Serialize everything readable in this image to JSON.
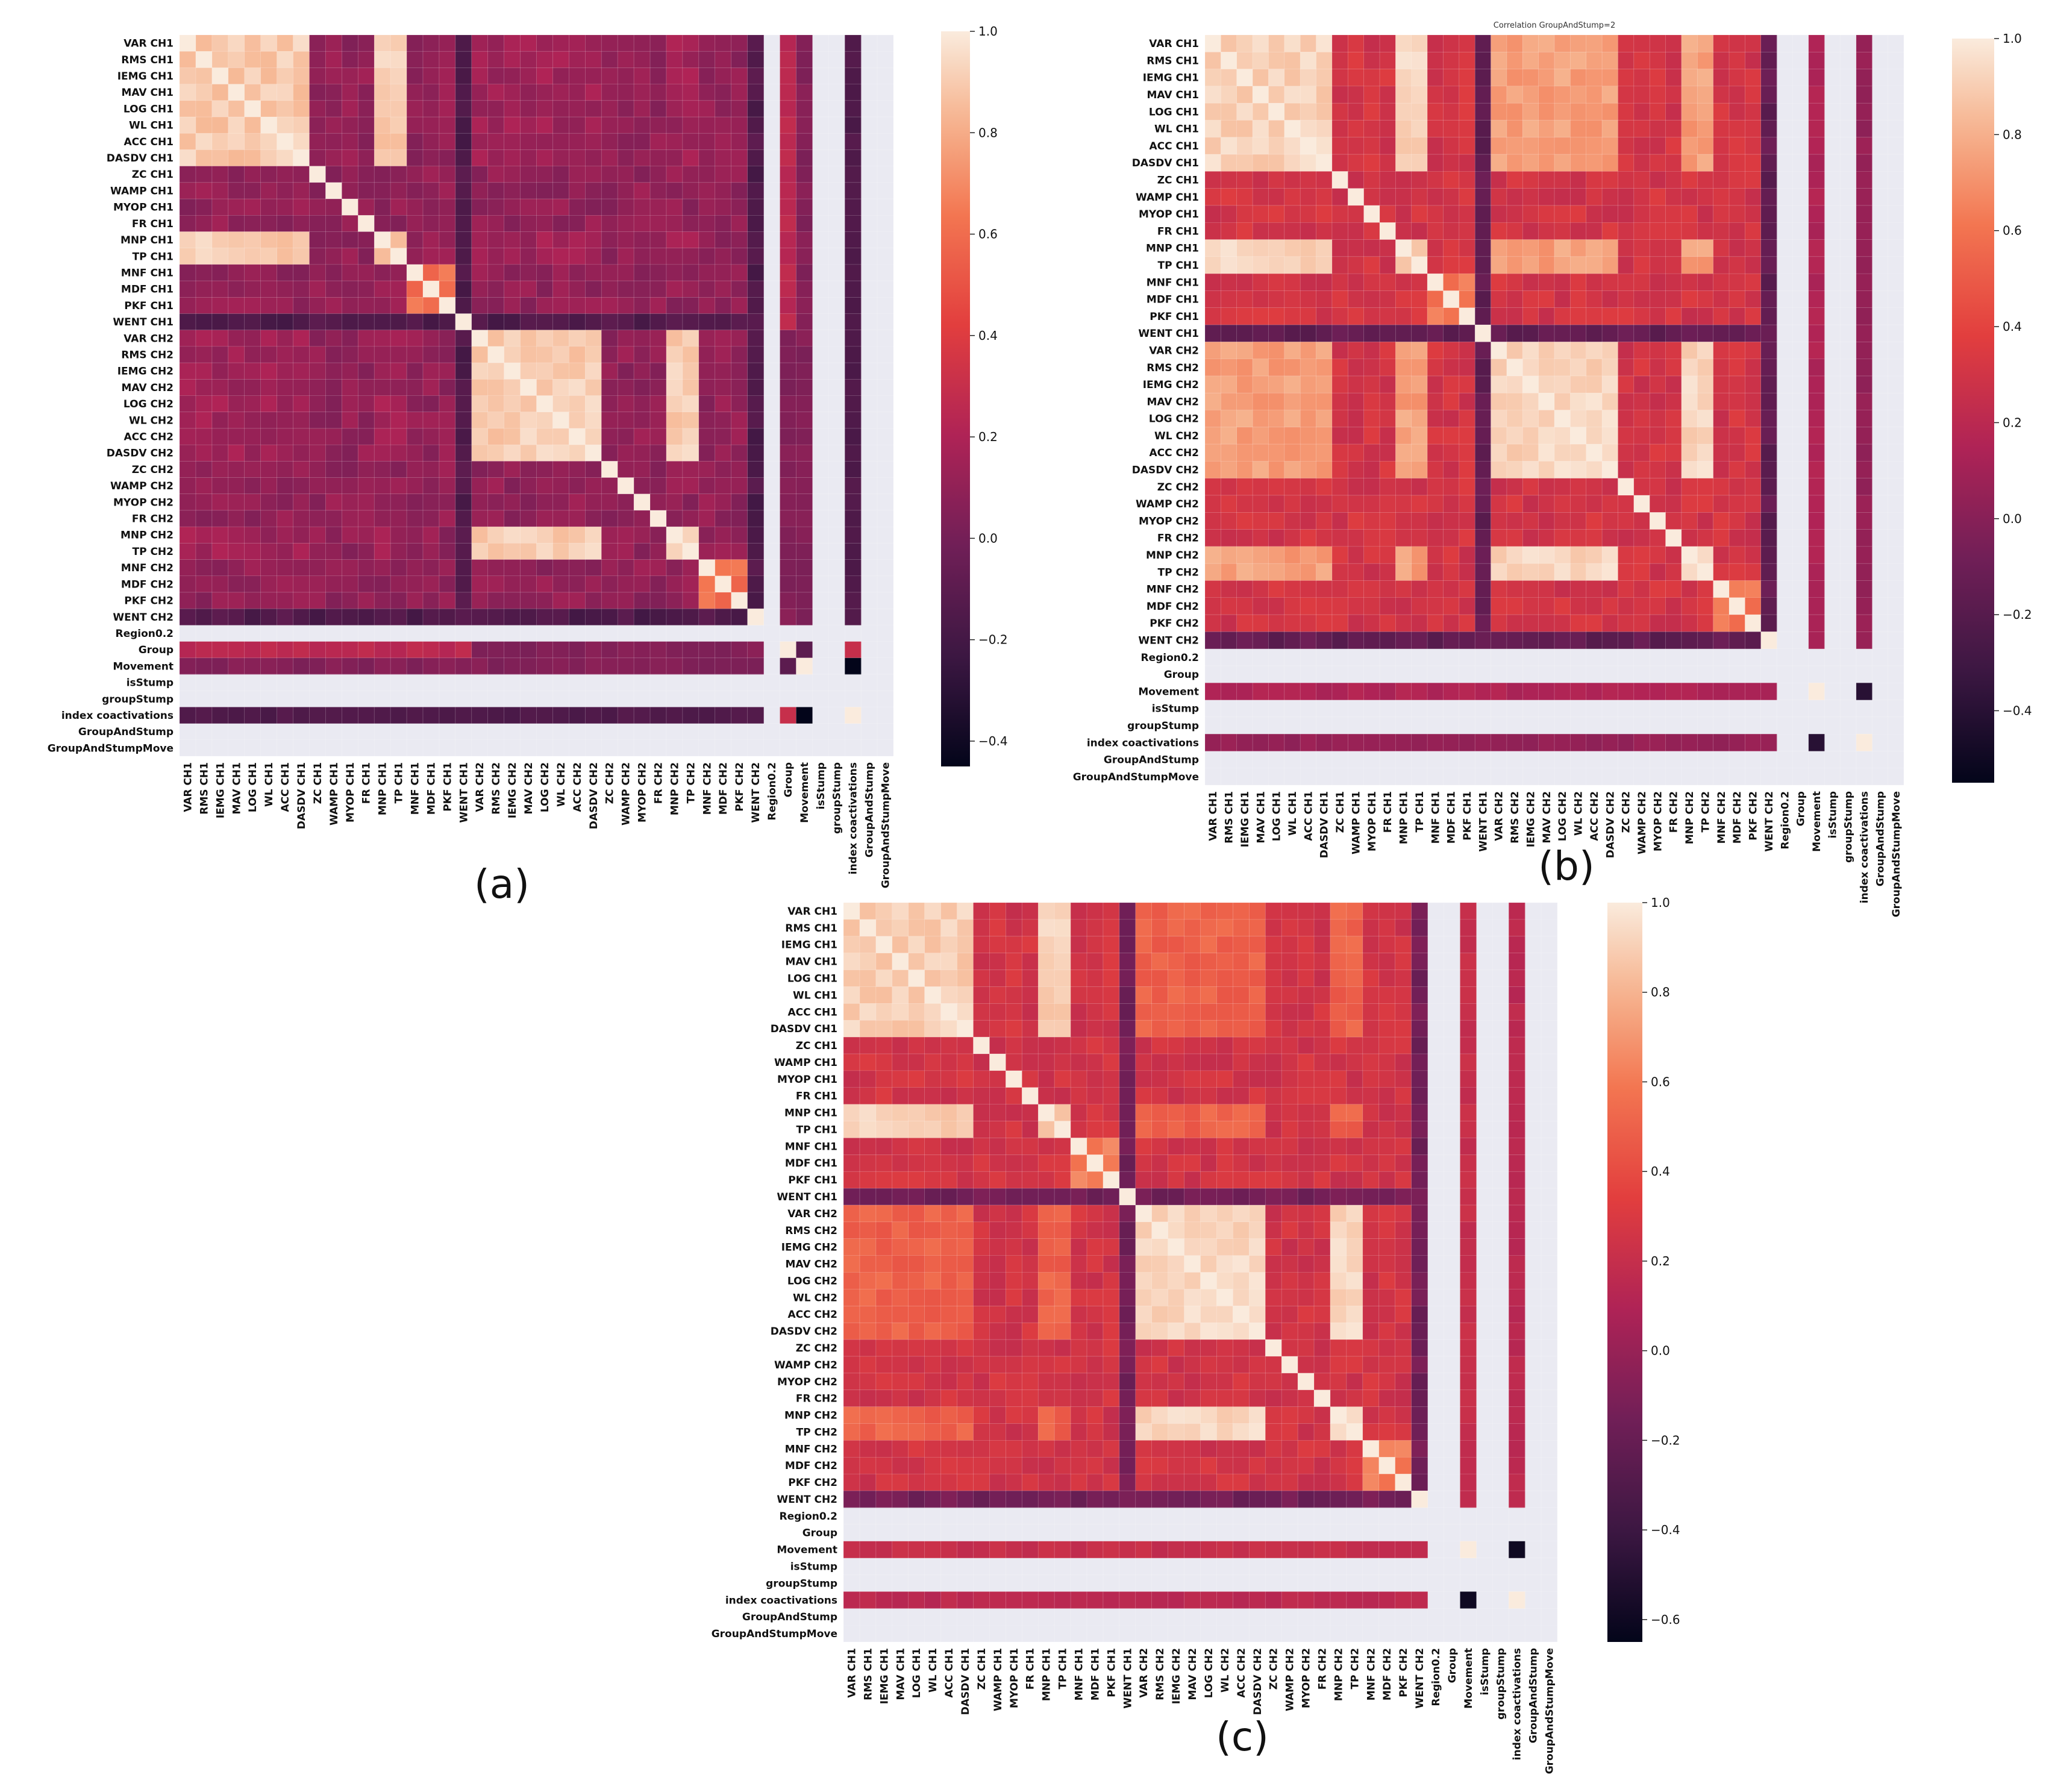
{
  "chart_data": [
    {
      "type": "heatmap",
      "panel_label": "(a)",
      "title": "",
      "labels": [
        "VAR CH1",
        "RMS CH1",
        "IEMG CH1",
        "MAV CH1",
        "LOG CH1",
        "WL CH1",
        "ACC CH1",
        "DASDV CH1",
        "ZC CH1",
        "WAMP CH1",
        "MYOP CH1",
        "FR CH1",
        "MNP CH1",
        "TP CH1",
        "MNF CH1",
        "MDF CH1",
        "PKF CH1",
        "WENT CH1",
        "VAR CH2",
        "RMS CH2",
        "IEMG CH2",
        "MAV CH2",
        "LOG CH2",
        "WL CH2",
        "ACC CH2",
        "DASDV CH2",
        "ZC CH2",
        "WAMP CH2",
        "MYOP CH2",
        "FR CH2",
        "MNP CH2",
        "TP CH2",
        "MNF CH2",
        "MDF CH2",
        "PKF CH2",
        "WENT CH2",
        "Region0.2",
        "Group",
        "Movement",
        "isStump",
        "groupStump",
        "index coactivations",
        "GroupAndStump",
        "GroupAndStumpMove"
      ],
      "colorbar": {
        "vmin": -0.45,
        "vmax": 1.0,
        "ticks": [
          "1.0",
          "0.8",
          "0.6",
          "0.4",
          "0.2",
          "0.0",
          "−0.2",
          "−0.4"
        ]
      },
      "empty_labels": [
        "Region0.2",
        "isStump",
        "groupStump",
        "GroupAndStump",
        "GroupAndStumpMove"
      ],
      "block_values": {
        "ch1_amp_block": 0.9,
        "ch2_amp_block": 0.9,
        "ch1_ch2_amp_cross": 0.15,
        "spectral_block": 0.6,
        "typical_off_diagonal": 0.1
      },
      "special_values": {
        "Group~Movement": -0.1,
        "Movement~index coactivations": -0.45,
        "Group~index coactivations": 0.3,
        "Group~ch1 features": 0.25,
        "index coactivations~features": -0.15
      }
    },
    {
      "type": "heatmap",
      "panel_label": "(b)",
      "title": "Correlation GroupAndStump=2",
      "labels": [
        "VAR CH1",
        "RMS CH1",
        "IEMG CH1",
        "MAV CH1",
        "LOG CH1",
        "WL CH1",
        "ACC CH1",
        "DASDV CH1",
        "ZC CH1",
        "WAMP CH1",
        "MYOP CH1",
        "FR CH1",
        "MNP CH1",
        "TP CH1",
        "MNF CH1",
        "MDF CH1",
        "PKF CH1",
        "WENT CH1",
        "VAR CH2",
        "RMS CH2",
        "IEMG CH2",
        "MAV CH2",
        "LOG CH2",
        "WL CH2",
        "ACC CH2",
        "DASDV CH2",
        "ZC CH2",
        "WAMP CH2",
        "MYOP CH2",
        "FR CH2",
        "MNP CH2",
        "TP CH2",
        "MNF CH2",
        "MDF CH2",
        "PKF CH2",
        "WENT CH2",
        "Region0.2",
        "Group",
        "Movement",
        "isStump",
        "groupStump",
        "index coactivations",
        "GroupAndStump",
        "GroupAndStumpMove"
      ],
      "colorbar": {
        "vmin": -0.55,
        "vmax": 1.0,
        "ticks": [
          "1.0",
          "0.8",
          "0.6",
          "0.4",
          "0.2",
          "0.0",
          "−0.2",
          "−0.4"
        ]
      },
      "empty_labels": [
        "Region0.2",
        "Group",
        "isStump",
        "groupStump",
        "GroupAndStump",
        "GroupAndStumpMove"
      ],
      "block_values": {
        "ch1_amp_block": 0.92,
        "ch2_amp_block": 0.92,
        "ch1_ch2_amp_cross": 0.75,
        "spectral_block": 0.6,
        "typical_off_diagonal": 0.3
      },
      "special_values": {
        "Movement~index coactivations": -0.4,
        "WENT CH2~spectral": -0.5,
        "Movement~features": 0.15,
        "index coactivations~features": 0.05
      }
    },
    {
      "type": "heatmap",
      "panel_label": "(c)",
      "title": "",
      "labels": [
        "VAR CH1",
        "RMS CH1",
        "IEMG CH1",
        "MAV CH1",
        "LOG CH1",
        "WL CH1",
        "ACC CH1",
        "DASDV CH1",
        "ZC CH1",
        "WAMP CH1",
        "MYOP CH1",
        "FR CH1",
        "MNP CH1",
        "TP CH1",
        "MNF CH1",
        "MDF CH1",
        "PKF CH1",
        "WENT CH1",
        "VAR CH2",
        "RMS CH2",
        "IEMG CH2",
        "MAV CH2",
        "LOG CH2",
        "WL CH2",
        "ACC CH2",
        "DASDV CH2",
        "ZC CH2",
        "WAMP CH2",
        "MYOP CH2",
        "FR CH2",
        "MNP CH2",
        "TP CH2",
        "MNF CH2",
        "MDF CH2",
        "PKF CH2",
        "WENT CH2",
        "Region0.2",
        "Group",
        "Movement",
        "isStump",
        "groupStump",
        "index coactivations",
        "GroupAndStump",
        "GroupAndStumpMove"
      ],
      "colorbar": {
        "vmin": -0.65,
        "vmax": 1.0,
        "ticks": [
          "1.0",
          "0.8",
          "0.6",
          "0.4",
          "0.2",
          "0.0",
          "−0.2",
          "−0.4",
          "−0.6"
        ]
      },
      "empty_labels": [
        "Region0.2",
        "Group",
        "isStump",
        "groupStump",
        "GroupAndStump",
        "GroupAndStumpMove"
      ],
      "block_values": {
        "ch1_amp_block": 0.9,
        "ch2_amp_block": 0.92,
        "ch1_ch2_amp_cross": 0.5,
        "spectral_block": 0.6,
        "typical_off_diagonal": 0.25
      },
      "special_values": {
        "Movement~index coactivations": -0.6,
        "WENT CH1~spectral": -0.55,
        "Movement~features": 0.2,
        "index coactivations~features": 0.15
      }
    }
  ]
}
